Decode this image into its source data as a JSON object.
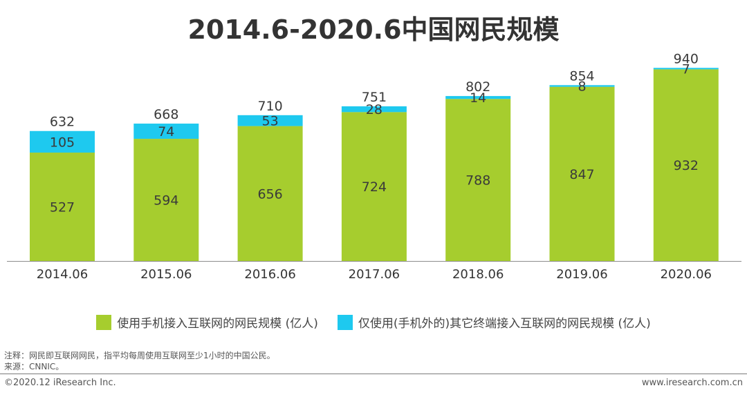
{
  "chart_data": {
    "type": "bar",
    "stacked": true,
    "title": "2014.6-2020.6中国网民规模",
    "categories": [
      "2014.06",
      "2015.06",
      "2016.06",
      "2017.06",
      "2018.06",
      "2019.06",
      "2020.06"
    ],
    "series": [
      {
        "name": "使用手机接入互联网的网民规模 (亿人)",
        "color": "#a6cd2e",
        "values": [
          527,
          594,
          656,
          724,
          788,
          847,
          932
        ]
      },
      {
        "name": "仅使用(手机外的)其它终端接入互联网的网民规模 (亿人)",
        "color": "#1ec9ef",
        "values": [
          105,
          74,
          53,
          28,
          14,
          8,
          7
        ]
      }
    ],
    "totals": [
      632,
      668,
      710,
      751,
      802,
      854,
      940
    ],
    "ylim": [
      0,
      940
    ]
  },
  "notes": {
    "line1": "注释：网民即互联网网民，指平均每周使用互联网至少1小时的中国公民。",
    "line2": "来源：CNNIC。"
  },
  "footer": {
    "copyright": "©2020.12 iResearch Inc.",
    "website": "www.iresearch.com.cn"
  }
}
